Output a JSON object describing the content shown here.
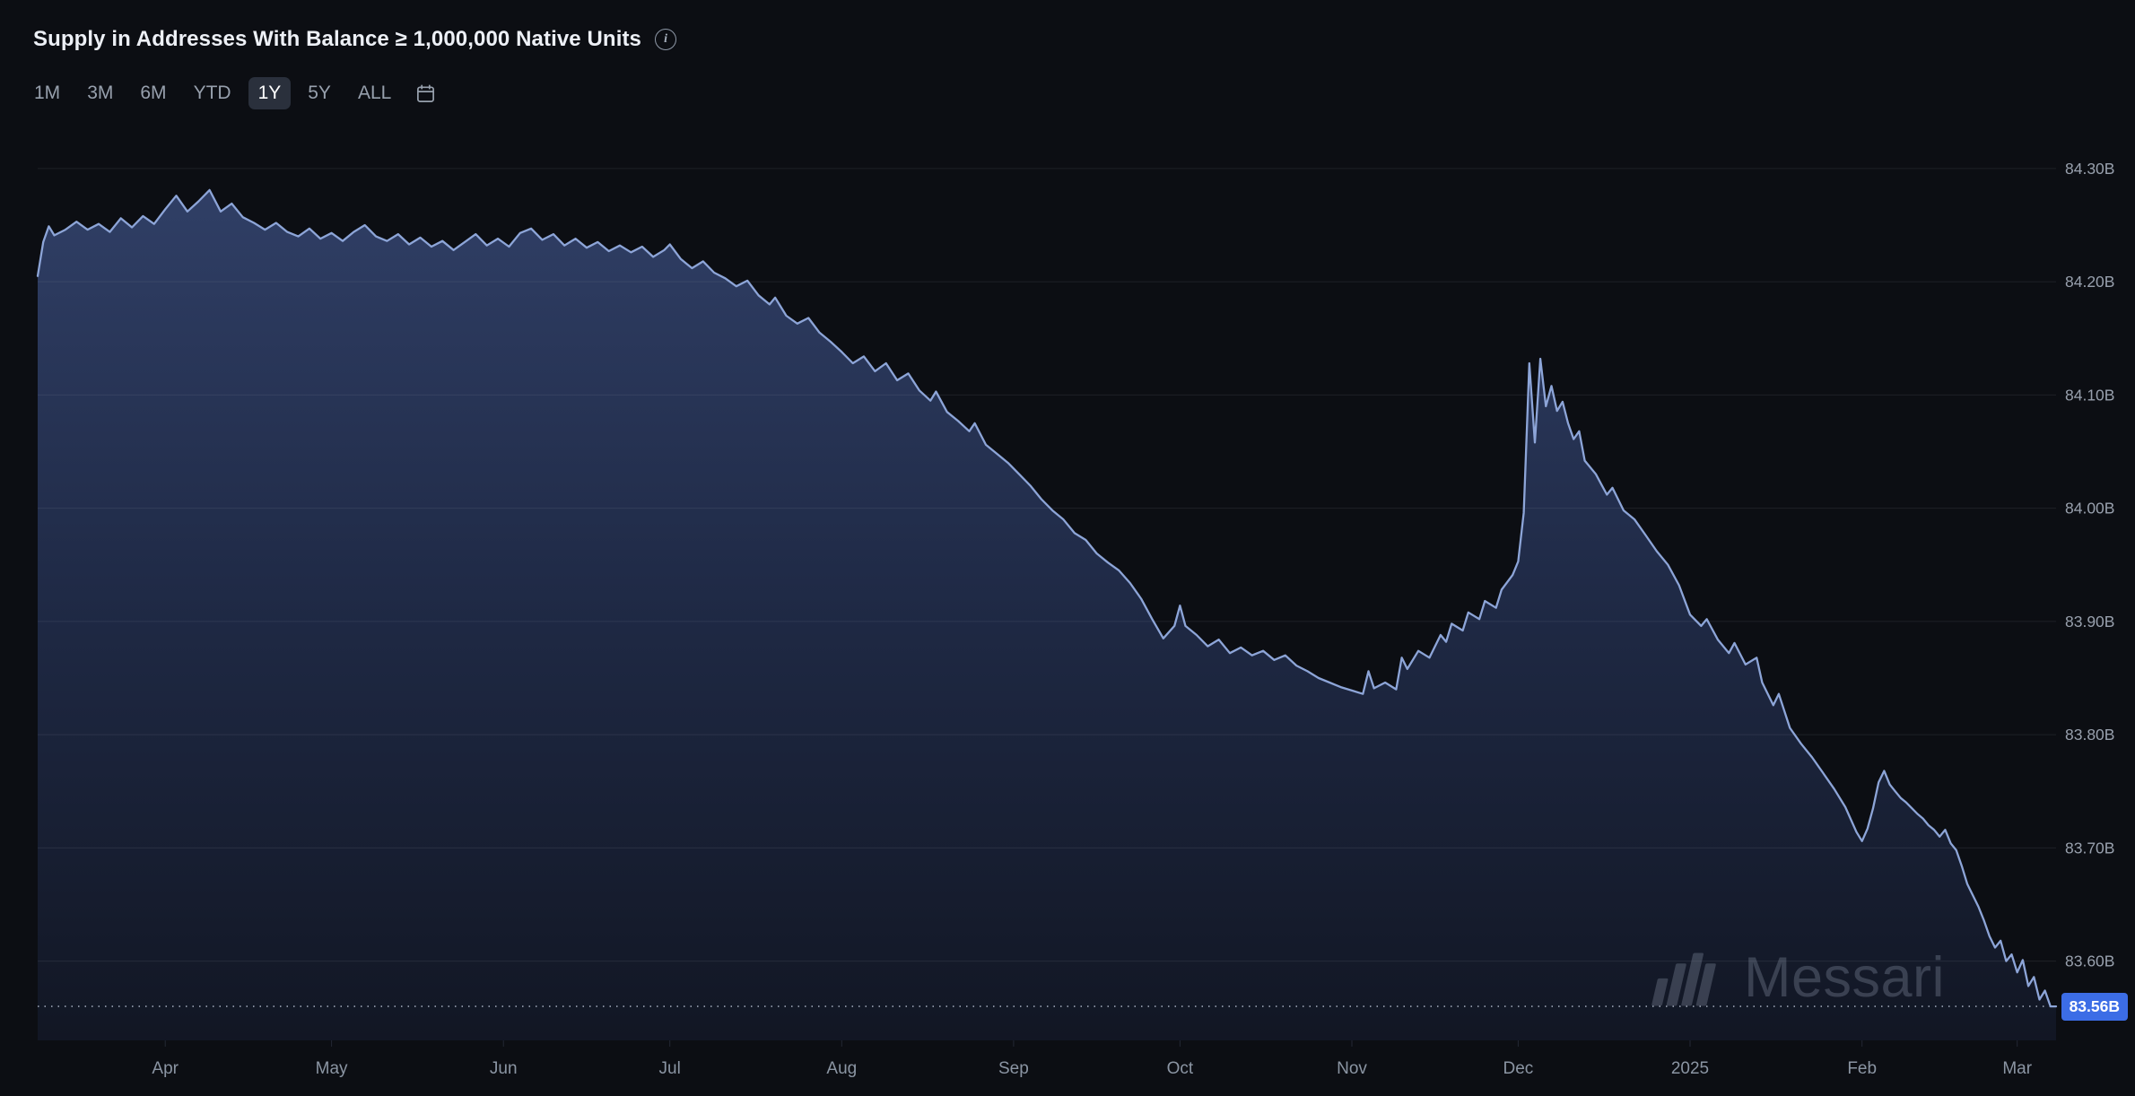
{
  "header": {
    "title": "Supply in Addresses With Balance ≥ 1,000,000 Native Units",
    "info_glyph": "i"
  },
  "toolbar": {
    "ranges": [
      "1M",
      "3M",
      "6M",
      "YTD",
      "1Y",
      "5Y",
      "ALL"
    ],
    "selected": "1Y"
  },
  "watermark": {
    "text": "Messari"
  },
  "chart_data": {
    "type": "area",
    "title": "Supply in Addresses With Balance ≥ 1,000,000 Native Units",
    "unit": "billions of native units",
    "x_range": [
      "2024-03-09",
      "2025-03-08"
    ],
    "ylim": [
      83.53,
      84.33
    ],
    "grid": "horizontal",
    "legend": "none",
    "y_ticks": [
      {
        "value": 84.3,
        "label": "84.30B"
      },
      {
        "value": 84.2,
        "label": "84.20B"
      },
      {
        "value": 84.1,
        "label": "84.10B"
      },
      {
        "value": 84.0,
        "label": "84.00B"
      },
      {
        "value": 83.9,
        "label": "83.90B"
      },
      {
        "value": 83.8,
        "label": "83.80B"
      },
      {
        "value": 83.7,
        "label": "83.70B"
      },
      {
        "value": 83.6,
        "label": "83.60B"
      }
    ],
    "x_ticks": [
      {
        "date": "2024-04-01",
        "label": "Apr"
      },
      {
        "date": "2024-05-01",
        "label": "May"
      },
      {
        "date": "2024-06-01",
        "label": "Jun"
      },
      {
        "date": "2024-07-01",
        "label": "Jul"
      },
      {
        "date": "2024-08-01",
        "label": "Aug"
      },
      {
        "date": "2024-09-01",
        "label": "Sep"
      },
      {
        "date": "2024-10-01",
        "label": "Oct"
      },
      {
        "date": "2024-11-01",
        "label": "Nov"
      },
      {
        "date": "2024-12-01",
        "label": "Dec"
      },
      {
        "date": "2025-01-01",
        "label": "2025"
      },
      {
        "date": "2025-02-01",
        "label": "Feb"
      },
      {
        "date": "2025-03-01",
        "label": "Mar"
      }
    ],
    "current": {
      "value": 83.56,
      "label": "83.56B"
    },
    "colors": {
      "line": "#8da5d8",
      "fill_top": "#33436c",
      "fill_mid": "#202b48",
      "fill_bottom": "#121725",
      "badge_bg": "#3c6de6",
      "grid": "#1d222c",
      "dotted": "#9aa3b3",
      "axis_label": "#98a0ad",
      "background": "#0c0e13"
    },
    "series": [
      {
        "name": "Supply in Addresses With Balance ≥ 1,000,000 Native Units",
        "points": [
          [
            "2024-03-09",
            84.205
          ],
          [
            "2024-03-10",
            84.235
          ],
          [
            "2024-03-11",
            84.249
          ],
          [
            "2024-03-12",
            84.241
          ],
          [
            "2024-03-14",
            84.246
          ],
          [
            "2024-03-16",
            84.253
          ],
          [
            "2024-03-18",
            84.246
          ],
          [
            "2024-03-20",
            84.251
          ],
          [
            "2024-03-22",
            84.244
          ],
          [
            "2024-03-24",
            84.256
          ],
          [
            "2024-03-26",
            84.248
          ],
          [
            "2024-03-28",
            84.258
          ],
          [
            "2024-03-30",
            84.251
          ],
          [
            "2024-04-01",
            84.264
          ],
          [
            "2024-04-03",
            84.276
          ],
          [
            "2024-04-05",
            84.262
          ],
          [
            "2024-04-07",
            84.271
          ],
          [
            "2024-04-09",
            84.281
          ],
          [
            "2024-04-11",
            84.262
          ],
          [
            "2024-04-13",
            84.269
          ],
          [
            "2024-04-15",
            84.257
          ],
          [
            "2024-04-17",
            84.252
          ],
          [
            "2024-04-19",
            84.246
          ],
          [
            "2024-04-21",
            84.252
          ],
          [
            "2024-04-23",
            84.244
          ],
          [
            "2024-04-25",
            84.24
          ],
          [
            "2024-04-27",
            84.247
          ],
          [
            "2024-04-29",
            84.238
          ],
          [
            "2024-05-01",
            84.243
          ],
          [
            "2024-05-03",
            84.236
          ],
          [
            "2024-05-05",
            84.244
          ],
          [
            "2024-05-07",
            84.25
          ],
          [
            "2024-05-09",
            84.24
          ],
          [
            "2024-05-11",
            84.236
          ],
          [
            "2024-05-13",
            84.242
          ],
          [
            "2024-05-15",
            84.233
          ],
          [
            "2024-05-17",
            84.239
          ],
          [
            "2024-05-19",
            84.231
          ],
          [
            "2024-05-21",
            84.236
          ],
          [
            "2024-05-23",
            84.228
          ],
          [
            "2024-05-25",
            84.235
          ],
          [
            "2024-05-27",
            84.242
          ],
          [
            "2024-05-29",
            84.232
          ],
          [
            "2024-05-31",
            84.238
          ],
          [
            "2024-06-02",
            84.231
          ],
          [
            "2024-06-04",
            84.243
          ],
          [
            "2024-06-06",
            84.247
          ],
          [
            "2024-06-08",
            84.237
          ],
          [
            "2024-06-10",
            84.242
          ],
          [
            "2024-06-12",
            84.232
          ],
          [
            "2024-06-14",
            84.238
          ],
          [
            "2024-06-16",
            84.23
          ],
          [
            "2024-06-18",
            84.235
          ],
          [
            "2024-06-20",
            84.227
          ],
          [
            "2024-06-22",
            84.232
          ],
          [
            "2024-06-24",
            84.226
          ],
          [
            "2024-06-26",
            84.231
          ],
          [
            "2024-06-28",
            84.222
          ],
          [
            "2024-06-30",
            84.228
          ],
          [
            "2024-07-01",
            84.233
          ],
          [
            "2024-07-03",
            84.22
          ],
          [
            "2024-07-05",
            84.212
          ],
          [
            "2024-07-07",
            84.218
          ],
          [
            "2024-07-09",
            84.208
          ],
          [
            "2024-07-11",
            84.203
          ],
          [
            "2024-07-13",
            84.196
          ],
          [
            "2024-07-15",
            84.201
          ],
          [
            "2024-07-17",
            84.188
          ],
          [
            "2024-07-19",
            84.18
          ],
          [
            "2024-07-20",
            84.186
          ],
          [
            "2024-07-22",
            84.17
          ],
          [
            "2024-07-24",
            84.163
          ],
          [
            "2024-07-26",
            84.168
          ],
          [
            "2024-07-28",
            84.155
          ],
          [
            "2024-07-30",
            84.147
          ],
          [
            "2024-08-01",
            84.138
          ],
          [
            "2024-08-03",
            84.128
          ],
          [
            "2024-08-05",
            84.134
          ],
          [
            "2024-08-07",
            84.121
          ],
          [
            "2024-08-09",
            84.128
          ],
          [
            "2024-08-11",
            84.113
          ],
          [
            "2024-08-13",
            84.119
          ],
          [
            "2024-08-15",
            84.104
          ],
          [
            "2024-08-17",
            84.095
          ],
          [
            "2024-08-18",
            84.103
          ],
          [
            "2024-08-20",
            84.085
          ],
          [
            "2024-08-22",
            84.077
          ],
          [
            "2024-08-24",
            84.068
          ],
          [
            "2024-08-25",
            84.075
          ],
          [
            "2024-08-27",
            84.056
          ],
          [
            "2024-08-29",
            84.048
          ],
          [
            "2024-08-31",
            84.04
          ],
          [
            "2024-09-02",
            84.03
          ],
          [
            "2024-09-04",
            84.02
          ],
          [
            "2024-09-06",
            84.008
          ],
          [
            "2024-09-08",
            83.998
          ],
          [
            "2024-09-10",
            83.99
          ],
          [
            "2024-09-12",
            83.978
          ],
          [
            "2024-09-14",
            83.972
          ],
          [
            "2024-09-16",
            83.96
          ],
          [
            "2024-09-18",
            83.952
          ],
          [
            "2024-09-20",
            83.945
          ],
          [
            "2024-09-22",
            83.934
          ],
          [
            "2024-09-24",
            83.92
          ],
          [
            "2024-09-26",
            83.902
          ],
          [
            "2024-09-28",
            83.885
          ],
          [
            "2024-09-30",
            83.896
          ],
          [
            "2024-10-01",
            83.914
          ],
          [
            "2024-10-02",
            83.896
          ],
          [
            "2024-10-04",
            83.888
          ],
          [
            "2024-10-06",
            83.878
          ],
          [
            "2024-10-08",
            83.884
          ],
          [
            "2024-10-10",
            83.872
          ],
          [
            "2024-10-12",
            83.877
          ],
          [
            "2024-10-14",
            83.87
          ],
          [
            "2024-10-16",
            83.874
          ],
          [
            "2024-10-18",
            83.866
          ],
          [
            "2024-10-20",
            83.87
          ],
          [
            "2024-10-22",
            83.861
          ],
          [
            "2024-10-24",
            83.856
          ],
          [
            "2024-10-26",
            83.85
          ],
          [
            "2024-10-28",
            83.846
          ],
          [
            "2024-10-30",
            83.842
          ],
          [
            "2024-11-01",
            83.839
          ],
          [
            "2024-11-03",
            83.836
          ],
          [
            "2024-11-04",
            83.856
          ],
          [
            "2024-11-05",
            83.841
          ],
          [
            "2024-11-07",
            83.846
          ],
          [
            "2024-11-09",
            83.84
          ],
          [
            "2024-11-10",
            83.868
          ],
          [
            "2024-11-11",
            83.858
          ],
          [
            "2024-11-13",
            83.874
          ],
          [
            "2024-11-15",
            83.868
          ],
          [
            "2024-11-17",
            83.888
          ],
          [
            "2024-11-18",
            83.882
          ],
          [
            "2024-11-19",
            83.898
          ],
          [
            "2024-11-21",
            83.892
          ],
          [
            "2024-11-22",
            83.908
          ],
          [
            "2024-11-24",
            83.902
          ],
          [
            "2024-11-25",
            83.918
          ],
          [
            "2024-11-27",
            83.912
          ],
          [
            "2024-11-28",
            83.928
          ],
          [
            "2024-11-30",
            83.941
          ],
          [
            "2024-12-01",
            83.953
          ],
          [
            "2024-12-02",
            83.996
          ],
          [
            "2024-12-03",
            84.128
          ],
          [
            "2024-12-04",
            84.058
          ],
          [
            "2024-12-05",
            84.132
          ],
          [
            "2024-12-06",
            84.09
          ],
          [
            "2024-12-07",
            84.108
          ],
          [
            "2024-12-08",
            84.086
          ],
          [
            "2024-12-09",
            84.094
          ],
          [
            "2024-12-10",
            84.075
          ],
          [
            "2024-12-11",
            84.061
          ],
          [
            "2024-12-12",
            84.068
          ],
          [
            "2024-12-13",
            84.042
          ],
          [
            "2024-12-15",
            84.03
          ],
          [
            "2024-12-16",
            84.021
          ],
          [
            "2024-12-17",
            84.012
          ],
          [
            "2024-12-18",
            84.018
          ],
          [
            "2024-12-20",
            83.998
          ],
          [
            "2024-12-22",
            83.99
          ],
          [
            "2024-12-24",
            83.976
          ],
          [
            "2024-12-26",
            83.962
          ],
          [
            "2024-12-28",
            83.95
          ],
          [
            "2024-12-30",
            83.932
          ],
          [
            "2025-01-01",
            83.906
          ],
          [
            "2025-01-03",
            83.896
          ],
          [
            "2025-01-04",
            83.902
          ],
          [
            "2025-01-06",
            83.884
          ],
          [
            "2025-01-08",
            83.872
          ],
          [
            "2025-01-09",
            83.881
          ],
          [
            "2025-01-11",
            83.862
          ],
          [
            "2025-01-13",
            83.868
          ],
          [
            "2025-01-14",
            83.846
          ],
          [
            "2025-01-16",
            83.826
          ],
          [
            "2025-01-17",
            83.836
          ],
          [
            "2025-01-19",
            83.806
          ],
          [
            "2025-01-21",
            83.792
          ],
          [
            "2025-01-23",
            83.78
          ],
          [
            "2025-01-25",
            83.766
          ],
          [
            "2025-01-27",
            83.752
          ],
          [
            "2025-01-29",
            83.736
          ],
          [
            "2025-01-31",
            83.714
          ],
          [
            "2025-02-01",
            83.706
          ],
          [
            "2025-02-02",
            83.717
          ],
          [
            "2025-02-03",
            83.735
          ],
          [
            "2025-02-04",
            83.758
          ],
          [
            "2025-02-05",
            83.768
          ],
          [
            "2025-02-06",
            83.756
          ],
          [
            "2025-02-07",
            83.75
          ],
          [
            "2025-02-08",
            83.744
          ],
          [
            "2025-02-09",
            83.74
          ],
          [
            "2025-02-10",
            83.735
          ],
          [
            "2025-02-11",
            83.73
          ],
          [
            "2025-02-12",
            83.726
          ],
          [
            "2025-02-13",
            83.72
          ],
          [
            "2025-02-14",
            83.716
          ],
          [
            "2025-02-15",
            83.71
          ],
          [
            "2025-02-16",
            83.716
          ],
          [
            "2025-02-17",
            83.704
          ],
          [
            "2025-02-18",
            83.698
          ],
          [
            "2025-02-19",
            83.684
          ],
          [
            "2025-02-20",
            83.668
          ],
          [
            "2025-02-21",
            83.658
          ],
          [
            "2025-02-22",
            83.648
          ],
          [
            "2025-02-23",
            83.636
          ],
          [
            "2025-02-24",
            83.622
          ],
          [
            "2025-02-25",
            83.612
          ],
          [
            "2025-02-26",
            83.618
          ],
          [
            "2025-02-27",
            83.6
          ],
          [
            "2025-02-28",
            83.606
          ],
          [
            "2025-03-01",
            83.59
          ],
          [
            "2025-03-02",
            83.601
          ],
          [
            "2025-03-03",
            83.578
          ],
          [
            "2025-03-04",
            83.586
          ],
          [
            "2025-03-05",
            83.566
          ],
          [
            "2025-03-06",
            83.574
          ],
          [
            "2025-03-07",
            83.56
          ],
          [
            "2025-03-08",
            83.56
          ]
        ]
      }
    ]
  }
}
